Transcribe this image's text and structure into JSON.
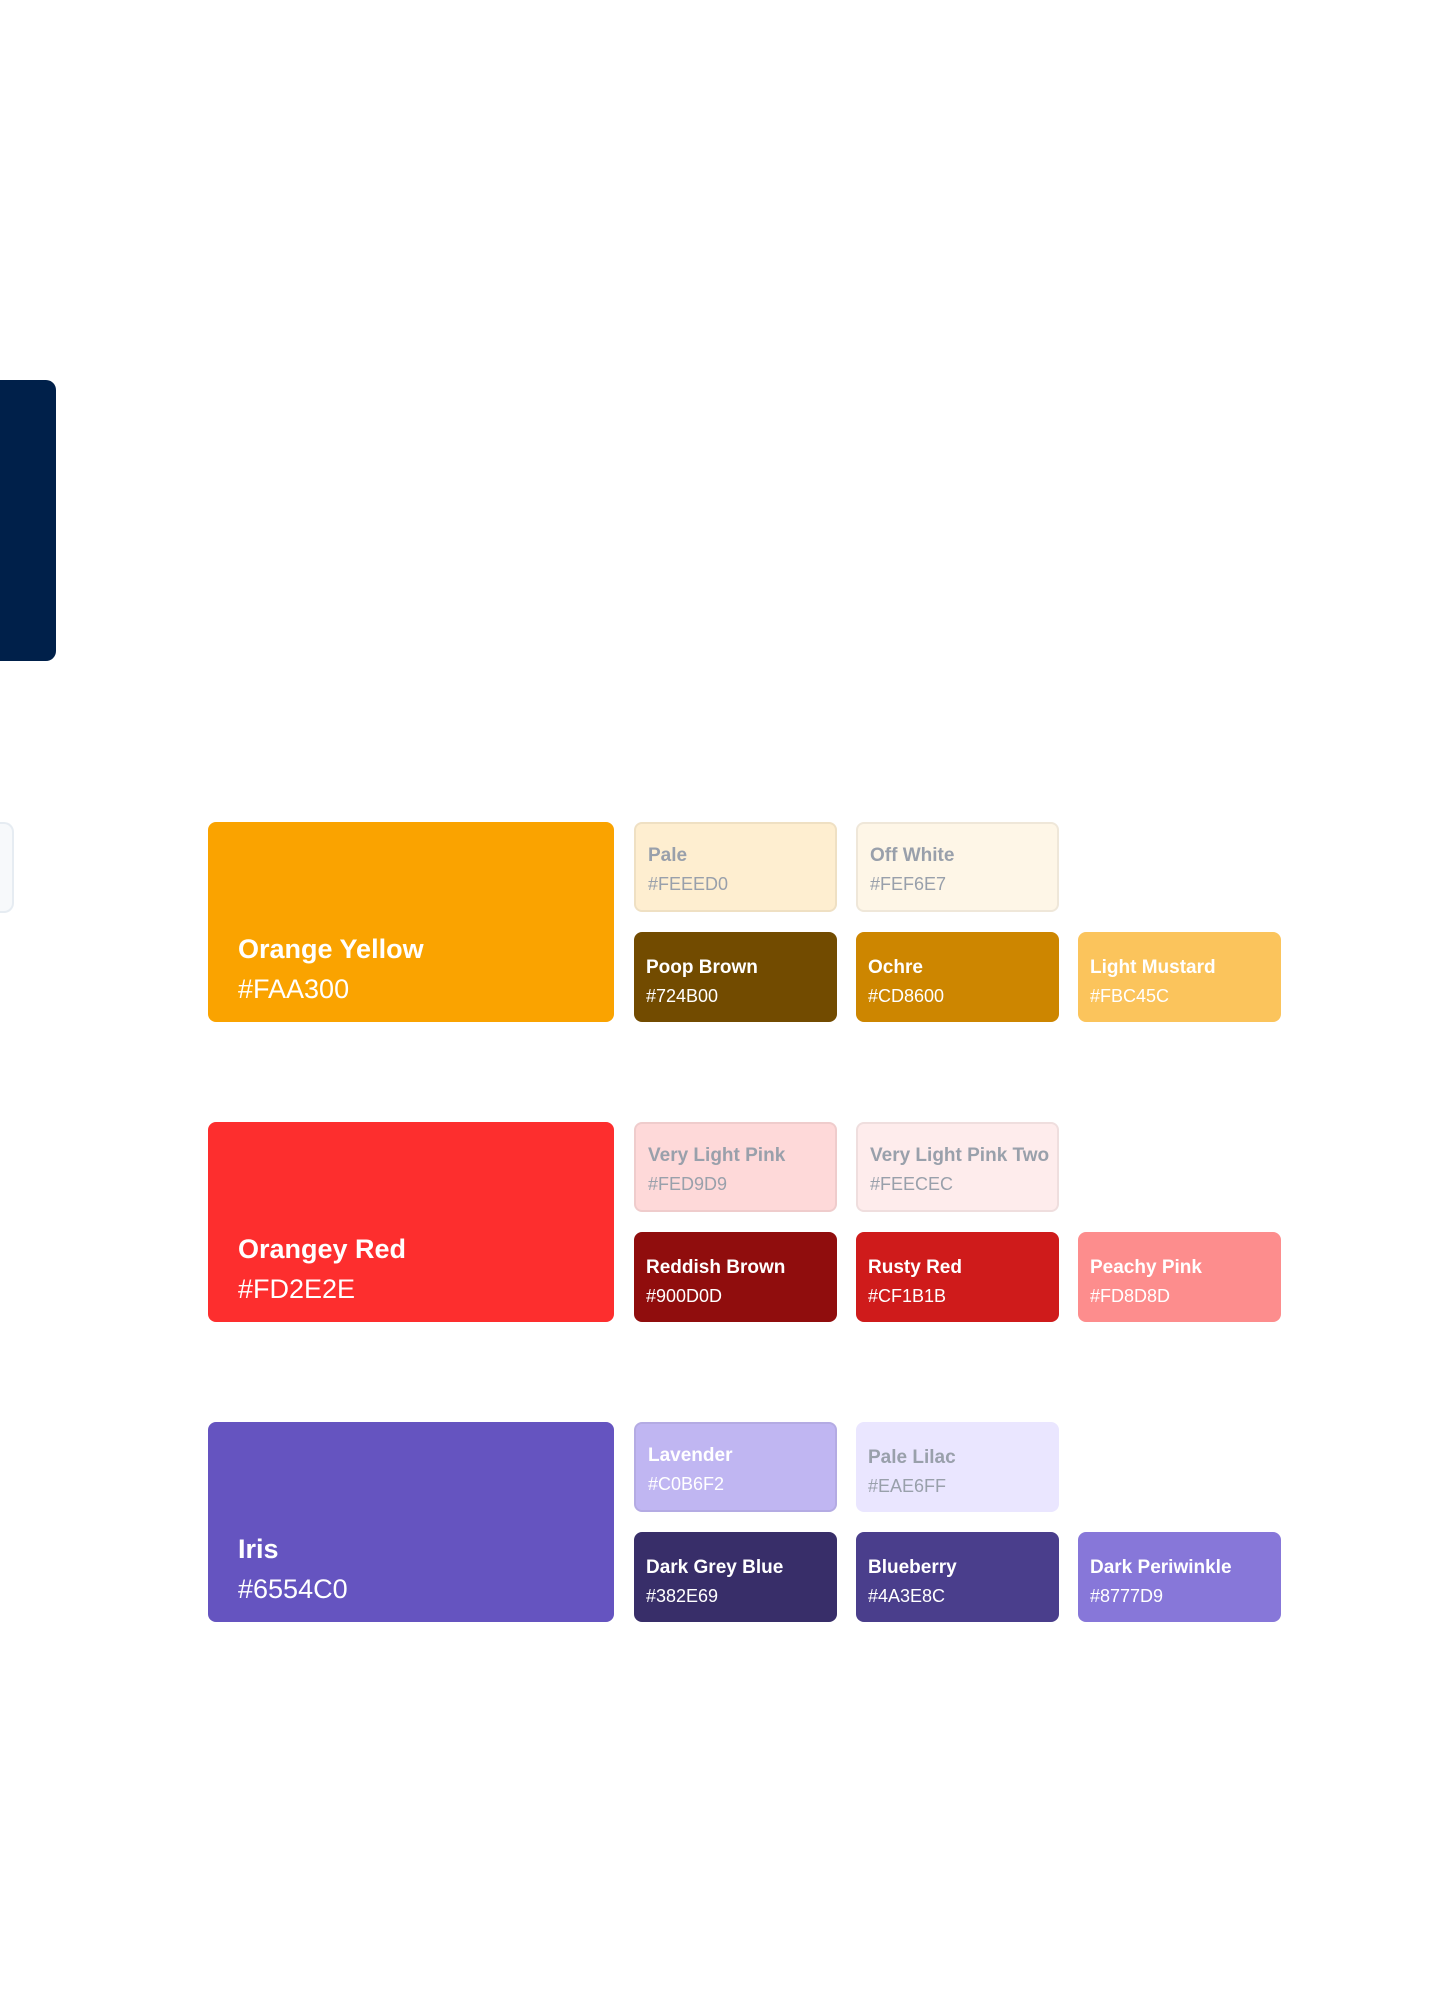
{
  "edges": {
    "navy_color": "#00204A"
  },
  "groups": [
    {
      "main": {
        "name": "Orange Yellow",
        "hex": "#FAA300",
        "bg": "#FAA300",
        "text": "#FFFFFF"
      },
      "tints": [
        {
          "name": "Pale",
          "hex": "#FEEED0",
          "bg": "#FEEED0",
          "text": "#99A0AB",
          "bordered": true
        },
        {
          "name": "Off White",
          "hex": "#FEF6E7",
          "bg": "#FEF6E7",
          "text": "#99A0AB",
          "bordered": true
        }
      ],
      "shades": [
        {
          "name": "Poop Brown",
          "hex": "#724B00",
          "bg": "#724B00",
          "text": "#FFFFFF"
        },
        {
          "name": "Ochre",
          "hex": "#CD8600",
          "bg": "#CD8600",
          "text": "#FFFFFF"
        },
        {
          "name": "Light Mustard",
          "hex": "#FBC45C",
          "bg": "#FBC45C",
          "text": "#FFFFFF"
        }
      ]
    },
    {
      "main": {
        "name": "Orangey Red",
        "hex": "#FD2E2E",
        "bg": "#FD2E2E",
        "text": "#FFFFFF"
      },
      "tints": [
        {
          "name": "Very Light Pink",
          "hex": "#FED9D9",
          "bg": "#FED9D9",
          "text": "#99A0AB",
          "bordered": true
        },
        {
          "name": "Very Light Pink Two",
          "hex": "#FEECEC",
          "bg": "#FEECEC",
          "text": "#99A0AB",
          "bordered": true
        }
      ],
      "shades": [
        {
          "name": "Reddish Brown",
          "hex": "#900D0D",
          "bg": "#900D0D",
          "text": "#FFFFFF"
        },
        {
          "name": "Rusty Red",
          "hex": "#CF1B1B",
          "bg": "#CF1B1B",
          "text": "#FFFFFF"
        },
        {
          "name": "Peachy Pink",
          "hex": "#FD8D8D",
          "bg": "#FD8D8D",
          "text": "#FFFFFF"
        }
      ]
    },
    {
      "main": {
        "name": "Iris",
        "hex": "#6554C0",
        "bg": "#6554C0",
        "text": "#FFFFFF"
      },
      "tints": [
        {
          "name": "Lavender",
          "hex": "#C0B6F2",
          "bg": "#C0B6F2",
          "text": "#FFFFFF",
          "bordered": true
        },
        {
          "name": "Pale Lilac",
          "hex": "#EAE6FF",
          "bg": "#EAE6FF",
          "text": "#99A0AB",
          "bordered": false
        }
      ],
      "shades": [
        {
          "name": "Dark Grey Blue",
          "hex": "#382E69",
          "bg": "#382E69",
          "text": "#FFFFFF"
        },
        {
          "name": "Blueberry",
          "hex": "#4A3E8C",
          "bg": "#4A3E8C",
          "text": "#FFFFFF"
        },
        {
          "name": "Dark Periwinkle",
          "hex": "#8777D9",
          "bg": "#8777D9",
          "text": "#FFFFFF"
        }
      ]
    }
  ]
}
